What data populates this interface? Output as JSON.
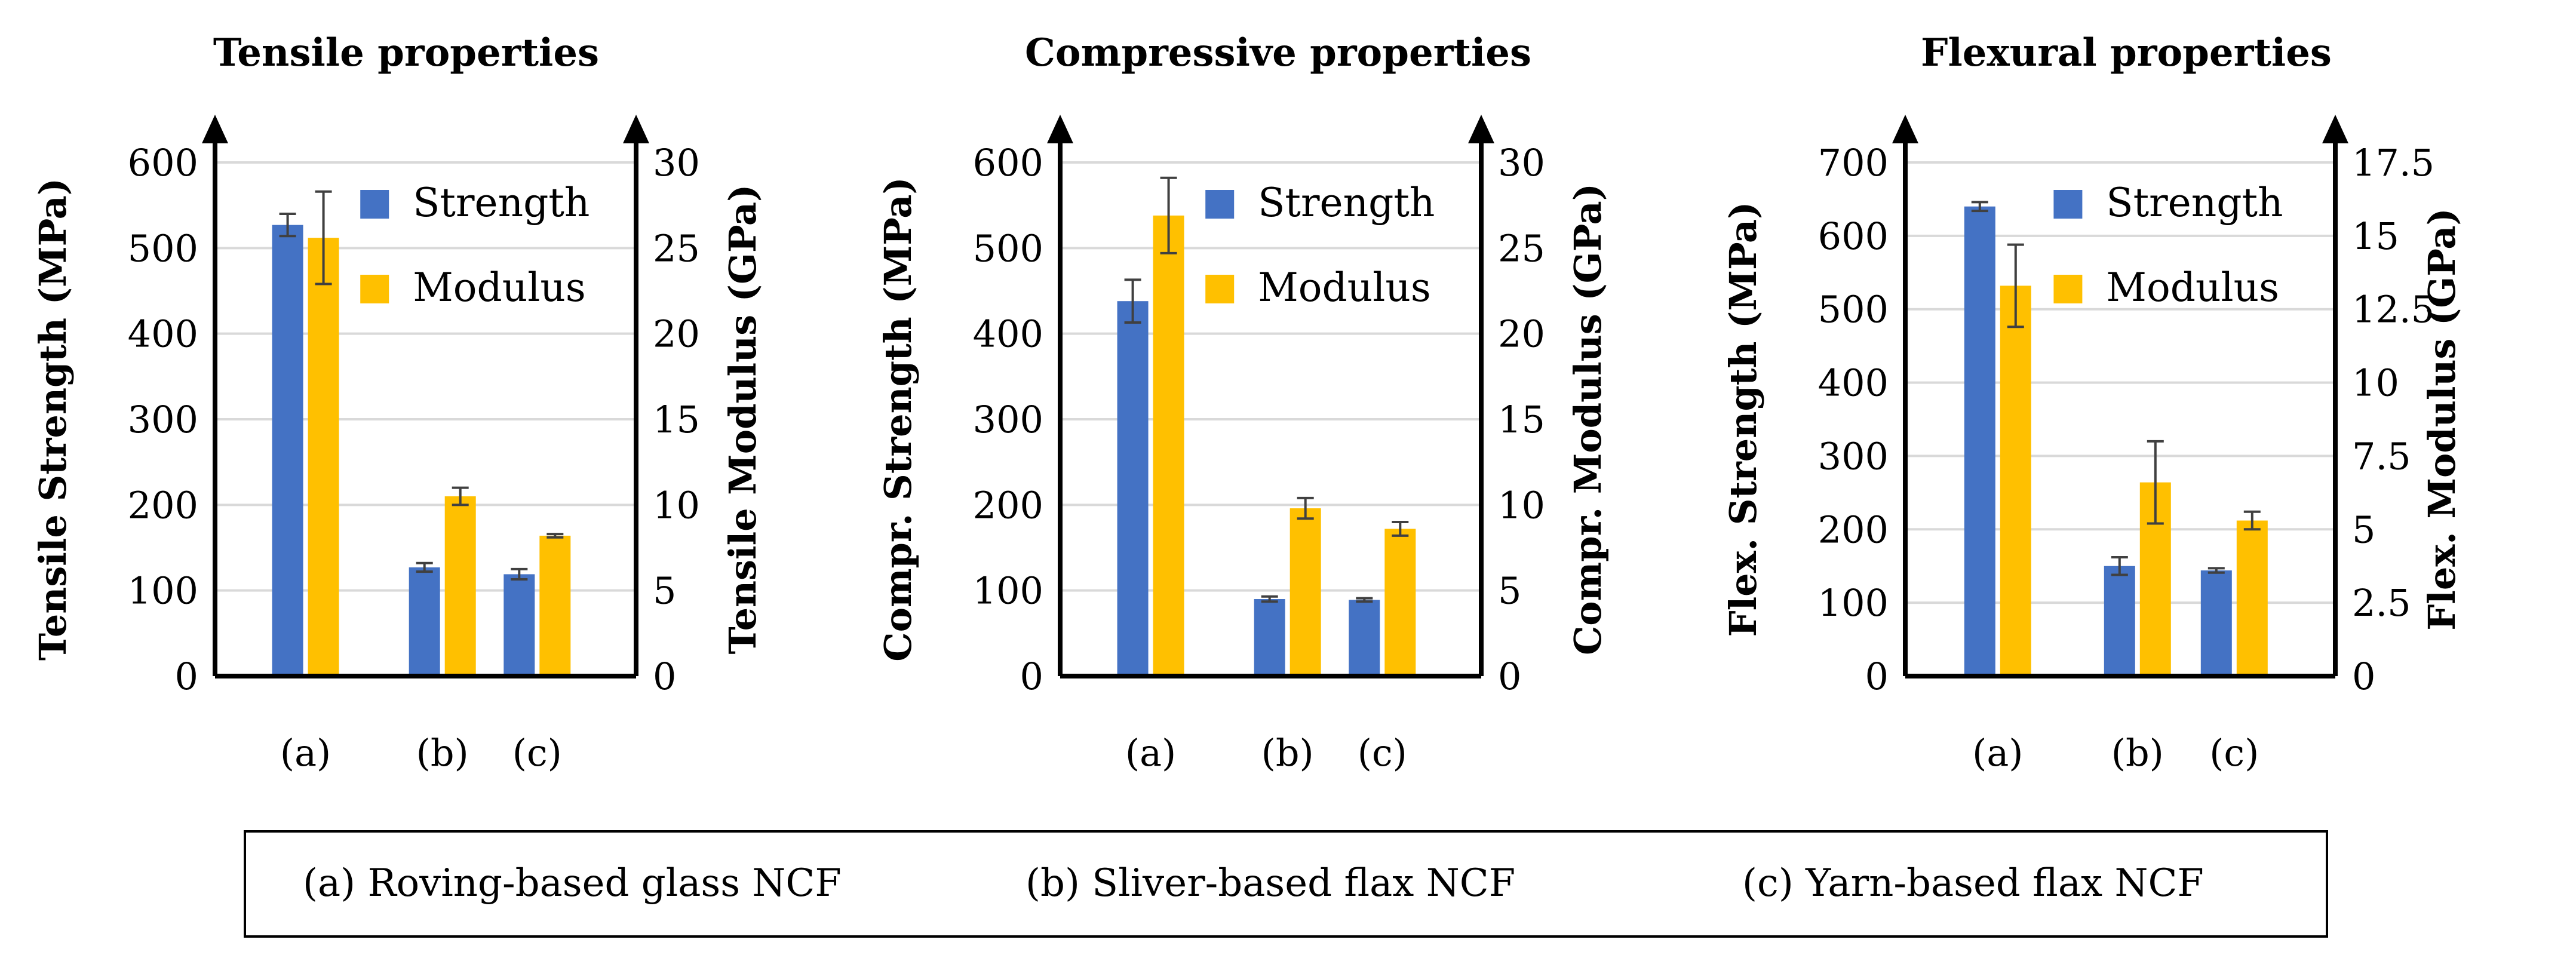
{
  "chart_data": [
    {
      "type": "bar",
      "title": "Tensile properties",
      "categories": [
        "(a)",
        "(b)",
        "(c)"
      ],
      "ylabel_left": "Tensile Strength (MPa)",
      "ylabel_right": "Tensile Modulus (GPa)",
      "ylim_left": [
        0,
        600
      ],
      "ylim_right": [
        0,
        30
      ],
      "yticks_left": [
        "0",
        "100",
        "200",
        "300",
        "400",
        "500",
        "600"
      ],
      "yticks_right": [
        "0",
        "5",
        "10",
        "15",
        "20",
        "25",
        "30"
      ],
      "grid": true,
      "legend_position": "top-right",
      "series": [
        {
          "name": "Strength",
          "axis": "left",
          "values": [
            527,
            127,
            119
          ],
          "errors": [
            13,
            5,
            6
          ]
        },
        {
          "name": "Modulus",
          "axis": "right",
          "values": [
            25.6,
            10.5,
            8.2
          ],
          "errors": [
            2.7,
            0.5,
            0.1
          ]
        }
      ]
    },
    {
      "type": "bar",
      "title": "Compressive properties",
      "categories": [
        "(a)",
        "(b)",
        "(c)"
      ],
      "ylabel_left": "Compr. Strength (MPa)",
      "ylabel_right": "Compr. Modulus (GPa)",
      "ylim_left": [
        0,
        600
      ],
      "ylim_right": [
        0,
        30
      ],
      "yticks_left": [
        "0",
        "100",
        "200",
        "300",
        "400",
        "500",
        "600"
      ],
      "yticks_right": [
        "0",
        "5",
        "10",
        "15",
        "20",
        "25",
        "30"
      ],
      "grid": true,
      "legend_position": "top-right",
      "series": [
        {
          "name": "Strength",
          "axis": "left",
          "values": [
            438,
            90,
            89
          ],
          "errors": [
            25,
            3,
            2
          ]
        },
        {
          "name": "Modulus",
          "axis": "right",
          "values": [
            26.9,
            9.8,
            8.6
          ],
          "errors": [
            2.2,
            0.6,
            0.4
          ]
        }
      ]
    },
    {
      "type": "bar",
      "title": "Flexural properties",
      "categories": [
        "(a)",
        "(b)",
        "(c)"
      ],
      "ylabel_left": "Flex. Strength (MPa)",
      "ylabel_right": "Flex. Modulus (GPa)",
      "ylim_left": [
        0,
        700
      ],
      "ylim_right": [
        0,
        17.5
      ],
      "yticks_left": [
        "0",
        "100",
        "200",
        "300",
        "400",
        "500",
        "600",
        "700"
      ],
      "yticks_right": [
        "0",
        "2.5",
        "5",
        "7.5",
        "10",
        "12.5",
        "15",
        "17.5"
      ],
      "grid": true,
      "legend_position": "top-right",
      "series": [
        {
          "name": "Strength",
          "axis": "left",
          "values": [
            640,
            150,
            144
          ],
          "errors": [
            6,
            12,
            3
          ]
        },
        {
          "name": "Modulus",
          "axis": "right",
          "values": [
            13.3,
            6.6,
            5.3
          ],
          "errors": [
            1.4,
            1.4,
            0.3
          ]
        }
      ]
    }
  ],
  "legend": {
    "items": [
      "(a) Roving-based glass NCF",
      "(b) Sliver-based flax NCF",
      "(c) Yarn-based flax NCF"
    ]
  },
  "colors": {
    "strength": "#4472C4",
    "modulus": "#FFC000",
    "grid": "#D9D9D9",
    "axis": "#000000",
    "error_bar": "#404040"
  }
}
